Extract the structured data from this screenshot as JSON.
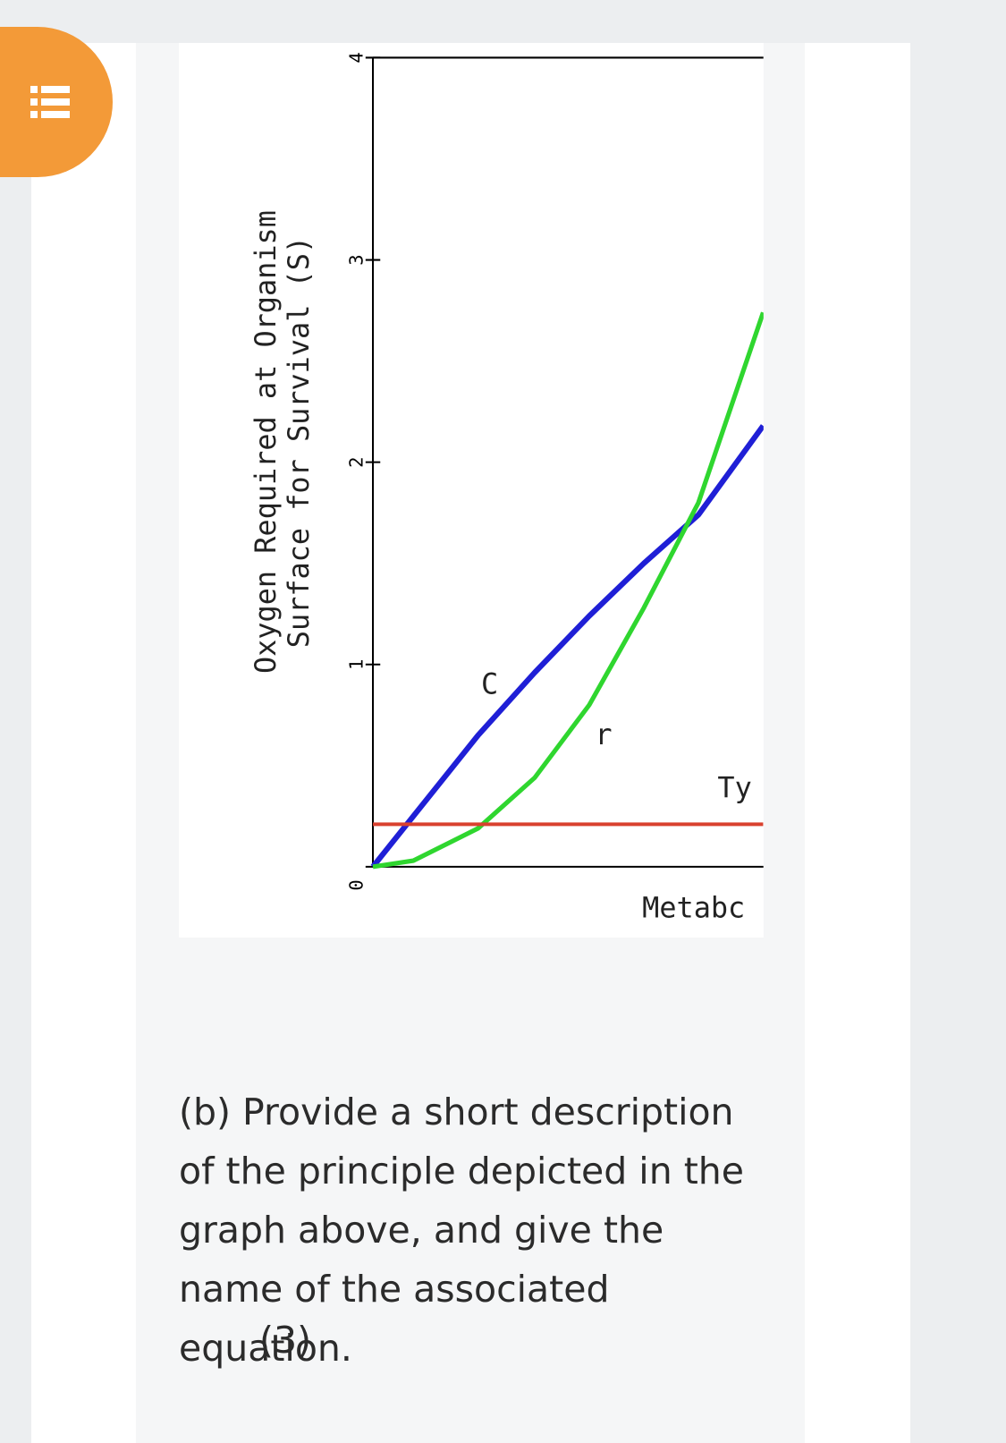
{
  "chart_data": {
    "type": "line",
    "y_label_lines": [
      "Oxygen Required at Organism",
      "Surface for Survival (S)"
    ],
    "x_label": "Metabc",
    "annotations": [
      "C",
      "r",
      "Ty"
    ],
    "ylim": [
      0,
      4
    ],
    "yticks": [
      0,
      1,
      2,
      3,
      4
    ],
    "xlim": [
      0,
      2
    ],
    "series": [
      {
        "name": "C",
        "color": "#1f1fd6",
        "x": [
          0,
          0.2,
          0.52,
          0.8,
          1.07,
          1.34,
          1.61,
          1.93
        ],
        "values": [
          0,
          0.25,
          0.65,
          0.96,
          1.24,
          1.5,
          1.74,
          2.18
        ]
      },
      {
        "name": "r",
        "color": "#2fd62f",
        "x": [
          0,
          0.2,
          0.52,
          0.8,
          1.07,
          1.34,
          1.61,
          1.93
        ],
        "values": [
          0,
          0.03,
          0.19,
          0.44,
          0.8,
          1.28,
          1.8,
          2.74
        ]
      },
      {
        "name": "Ty",
        "color": "#d9412f",
        "x": [
          0,
          1.93
        ],
        "values": [
          0.21,
          0.21
        ]
      }
    ]
  },
  "question": {
    "text": "(b) Provide a short description of the principle depicted in the graph above, and give the name of the associated equation.",
    "marks": "(3)"
  }
}
